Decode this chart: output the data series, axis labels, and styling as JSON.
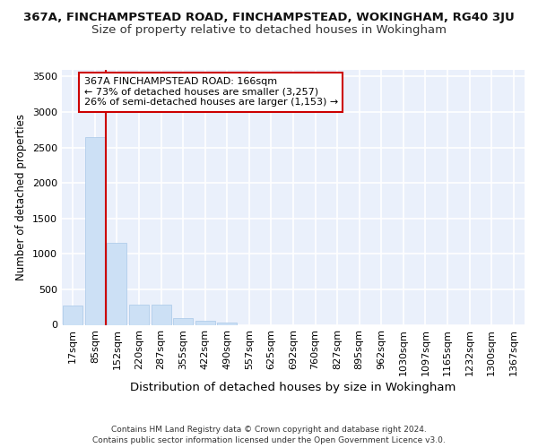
{
  "title_line1": "367A, FINCHAMPSTEAD ROAD, FINCHAMPSTEAD, WOKINGHAM, RG40 3JU",
  "title_line2": "Size of property relative to detached houses in Wokingham",
  "xlabel": "Distribution of detached houses by size in Wokingham",
  "ylabel": "Number of detached properties",
  "footer_line1": "Contains HM Land Registry data © Crown copyright and database right 2024.",
  "footer_line2": "Contains public sector information licensed under the Open Government Licence v3.0.",
  "annotation_line1": "367A FINCHAMPSTEAD ROAD: 166sqm",
  "annotation_line2": "← 73% of detached houses are smaller (3,257)",
  "annotation_line3": "26% of semi-detached houses are larger (1,153) →",
  "bar_color": "#cce0f5",
  "bar_edge_color": "#a8c8e8",
  "vline_color": "#cc0000",
  "vline_x": 1.5,
  "categories": [
    "17sqm",
    "85sqm",
    "152sqm",
    "220sqm",
    "287sqm",
    "355sqm",
    "422sqm",
    "490sqm",
    "557sqm",
    "625sqm",
    "692sqm",
    "760sqm",
    "827sqm",
    "895sqm",
    "962sqm",
    "1030sqm",
    "1097sqm",
    "1165sqm",
    "1232sqm",
    "1300sqm",
    "1367sqm"
  ],
  "values": [
    270,
    2650,
    1155,
    285,
    285,
    90,
    55,
    35,
    0,
    0,
    0,
    0,
    0,
    0,
    0,
    0,
    0,
    0,
    0,
    0,
    0
  ],
  "ylim": [
    0,
    3600
  ],
  "yticks": [
    0,
    500,
    1000,
    1500,
    2000,
    2500,
    3000,
    3500
  ],
  "bg_color": "#eaf0fb",
  "grid_color": "#ffffff",
  "title1_fontsize": 9.5,
  "title2_fontsize": 9.5,
  "ylabel_fontsize": 8.5,
  "xlabel_fontsize": 9.5,
  "tick_fontsize": 8,
  "footer_fontsize": 6.5,
  "annot_fontsize": 8
}
